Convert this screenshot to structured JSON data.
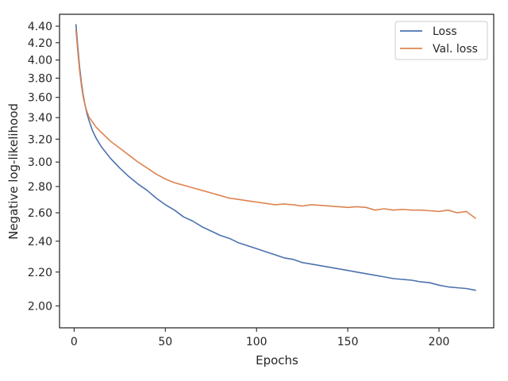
{
  "chart_data": {
    "type": "line",
    "title": "",
    "xlabel": "Epochs",
    "ylabel": "Negative log-likelihood",
    "xlim": [
      -8,
      230
    ],
    "ylim": [
      1.88,
      4.55
    ],
    "y_scale": "log",
    "grid": false,
    "legend_position": "top-right",
    "x_ticks": [
      0,
      50,
      100,
      150,
      200
    ],
    "x_tick_labels": [
      "0",
      "50",
      "100",
      "150",
      "200"
    ],
    "y_ticks": [
      2.0,
      2.2,
      2.4,
      2.6,
      2.8,
      3.0,
      3.2,
      3.4,
      3.6,
      3.8,
      4.0,
      4.2,
      4.4
    ],
    "y_tick_labels": [
      "2.00",
      "2.20",
      "2.40",
      "2.60",
      "2.80",
      "3.00",
      "3.20",
      "3.40",
      "3.60",
      "3.80",
      "4.00",
      "4.20",
      "4.40"
    ],
    "x": [
      1,
      2,
      3,
      4,
      5,
      6,
      7,
      8,
      10,
      12,
      15,
      20,
      25,
      30,
      35,
      40,
      45,
      50,
      55,
      60,
      65,
      70,
      75,
      80,
      85,
      90,
      95,
      100,
      105,
      110,
      115,
      120,
      125,
      130,
      135,
      140,
      145,
      150,
      155,
      160,
      165,
      170,
      175,
      180,
      185,
      190,
      195,
      200,
      205,
      210,
      215,
      220
    ],
    "series": [
      {
        "name": "Loss",
        "color": "#4c72b0",
        "values": [
          4.42,
          4.15,
          3.92,
          3.75,
          3.62,
          3.52,
          3.44,
          3.38,
          3.28,
          3.21,
          3.13,
          3.03,
          2.95,
          2.88,
          2.82,
          2.77,
          2.71,
          2.66,
          2.62,
          2.57,
          2.54,
          2.5,
          2.47,
          2.44,
          2.42,
          2.39,
          2.37,
          2.35,
          2.33,
          2.31,
          2.29,
          2.28,
          2.26,
          2.25,
          2.24,
          2.23,
          2.22,
          2.21,
          2.2,
          2.19,
          2.18,
          2.17,
          2.16,
          2.155,
          2.15,
          2.14,
          2.135,
          2.12,
          2.11,
          2.105,
          2.1,
          2.09
        ]
      },
      {
        "name": "Val. loss",
        "color": "#dd8452",
        "values": [
          4.35,
          4.1,
          3.88,
          3.72,
          3.6,
          3.52,
          3.46,
          3.41,
          3.36,
          3.31,
          3.26,
          3.18,
          3.12,
          3.06,
          3.0,
          2.95,
          2.9,
          2.86,
          2.83,
          2.81,
          2.79,
          2.77,
          2.75,
          2.73,
          2.71,
          2.7,
          2.69,
          2.68,
          2.67,
          2.66,
          2.665,
          2.66,
          2.65,
          2.66,
          2.655,
          2.65,
          2.645,
          2.64,
          2.645,
          2.64,
          2.62,
          2.63,
          2.62,
          2.625,
          2.62,
          2.62,
          2.615,
          2.61,
          2.62,
          2.6,
          2.61,
          2.56
        ]
      }
    ]
  }
}
